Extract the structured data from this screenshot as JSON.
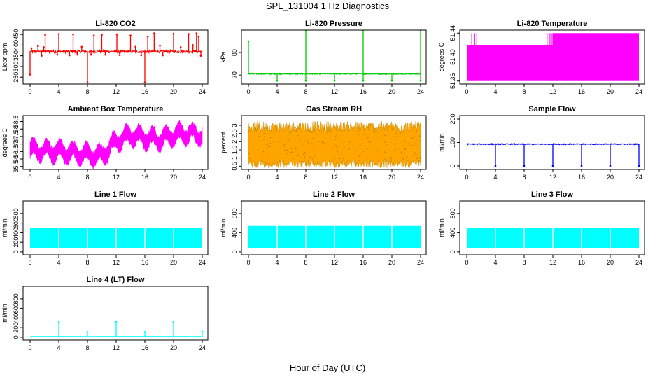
{
  "page": {
    "title": "SPL_131004  1 Hz Diagnostics",
    "xlabel": "Hour of Day (UTC)"
  },
  "chart_data": [
    {
      "type": "line",
      "title": "Li-820 CO2",
      "ylabel": "Licor ppm",
      "color": "#ff0000",
      "xlim": [
        0,
        24
      ],
      "xticks": [
        0,
        4,
        8,
        12,
        16,
        20,
        24
      ],
      "ylim": [
        218,
        470
      ],
      "yticks": [
        250,
        300,
        350,
        400,
        450
      ],
      "baseline": 370,
      "noise": 6,
      "spikes": [
        {
          "x": 0.0,
          "y": 262
        },
        {
          "x": 0.2,
          "y": 385
        },
        {
          "x": 1.1,
          "y": 395
        },
        {
          "x": 1.6,
          "y": 350
        },
        {
          "x": 1.9,
          "y": 390
        },
        {
          "x": 2.1,
          "y": 448
        },
        {
          "x": 3.8,
          "y": 355
        },
        {
          "x": 4.0,
          "y": 452
        },
        {
          "x": 5.5,
          "y": 352
        },
        {
          "x": 6.0,
          "y": 450
        },
        {
          "x": 6.6,
          "y": 355
        },
        {
          "x": 7.2,
          "y": 392
        },
        {
          "x": 8.0,
          "y": 225
        },
        {
          "x": 8.5,
          "y": 355
        },
        {
          "x": 8.9,
          "y": 445
        },
        {
          "x": 10.0,
          "y": 448
        },
        {
          "x": 10.5,
          "y": 355
        },
        {
          "x": 12.1,
          "y": 450
        },
        {
          "x": 12.5,
          "y": 353
        },
        {
          "x": 14.0,
          "y": 445
        },
        {
          "x": 14.7,
          "y": 392
        },
        {
          "x": 15.5,
          "y": 352
        },
        {
          "x": 16.0,
          "y": 225
        },
        {
          "x": 16.4,
          "y": 440
        },
        {
          "x": 17.3,
          "y": 455
        },
        {
          "x": 18.1,
          "y": 398
        },
        {
          "x": 18.5,
          "y": 352
        },
        {
          "x": 20.0,
          "y": 453
        },
        {
          "x": 21.0,
          "y": 390
        },
        {
          "x": 22.1,
          "y": 452
        },
        {
          "x": 22.7,
          "y": 400
        },
        {
          "x": 23.2,
          "y": 455
        },
        {
          "x": 23.5,
          "y": 440
        },
        {
          "x": 23.8,
          "y": 350
        }
      ]
    },
    {
      "type": "line",
      "title": "Li-820 Pressure",
      "ylabel": "kPa",
      "color": "#00cc00",
      "xlim": [
        0,
        24
      ],
      "xticks": [
        0,
        4,
        8,
        12,
        16,
        20,
        24
      ],
      "ylim": [
        66,
        90
      ],
      "yticks": [
        70,
        80
      ],
      "baseline": 70.5,
      "noise": 0.2,
      "spikes": [
        {
          "x": 0.0,
          "y": 85
        },
        {
          "x": 4.0,
          "y": 67.5
        },
        {
          "x": 8.0,
          "y": 90
        },
        {
          "x": 8.0,
          "y": 67.5
        },
        {
          "x": 12.0,
          "y": 67.5
        },
        {
          "x": 16.0,
          "y": 90
        },
        {
          "x": 16.0,
          "y": 67.5
        },
        {
          "x": 20.0,
          "y": 67.5
        },
        {
          "x": 24.0,
          "y": 90
        },
        {
          "x": 24.0,
          "y": 67.5
        }
      ]
    },
    {
      "type": "area",
      "title": "Li-820 Temperature",
      "ylabel": "degrees C",
      "color": "#ff00ff",
      "xlim": [
        0,
        24
      ],
      "xticks": [
        0,
        4,
        8,
        12,
        16,
        20,
        24
      ],
      "ylim": [
        51.355,
        51.445
      ],
      "yticks": [
        51.36,
        51.4,
        51.44
      ],
      "low": 51.36,
      "high_early": 51.42,
      "high_late": 51.44,
      "switch_hour": 12.0,
      "bursts": [
        {
          "x": 0.7,
          "y": 51.44
        },
        {
          "x": 1.1,
          "y": 51.44
        },
        {
          "x": 1.4,
          "y": 51.44
        },
        {
          "x": 11.2,
          "y": 51.44
        },
        {
          "x": 11.6,
          "y": 51.44
        },
        {
          "x": 11.9,
          "y": 51.44
        },
        {
          "x": 12.6,
          "y": 51.42
        },
        {
          "x": 14.0,
          "y": 51.42
        },
        {
          "x": 15.2,
          "y": 51.42
        },
        {
          "x": 17.0,
          "y": 51.42
        },
        {
          "x": 18.3,
          "y": 51.42
        },
        {
          "x": 19.5,
          "y": 51.42
        }
      ]
    },
    {
      "type": "area",
      "title": "Ambient Box Temperature",
      "ylabel": "degrees C",
      "color": "#ff00ff",
      "xlim": [
        0,
        24
      ],
      "xticks": [
        0,
        4,
        8,
        12,
        16,
        20,
        24
      ],
      "ylim": [
        35.3,
        38.9
      ],
      "yticks": [
        35.5,
        36.0,
        36.5,
        37.0,
        37.5,
        38.0,
        38.5
      ],
      "trend": [
        {
          "x": 0,
          "y": 36.6
        },
        {
          "x": 4,
          "y": 36.5
        },
        {
          "x": 8,
          "y": 36.3
        },
        {
          "x": 10,
          "y": 36.2
        },
        {
          "x": 12,
          "y": 37.2
        },
        {
          "x": 14,
          "y": 37.6
        },
        {
          "x": 16,
          "y": 37.4
        },
        {
          "x": 18,
          "y": 37.3
        },
        {
          "x": 20,
          "y": 37.6
        },
        {
          "x": 22,
          "y": 37.7
        },
        {
          "x": 24,
          "y": 37.6
        }
      ],
      "amplitude": 0.6
    },
    {
      "type": "area",
      "title": "Gas Stream RH",
      "ylabel": "percent",
      "color": "#ffa500",
      "xlim": [
        0,
        24
      ],
      "xticks": [
        0,
        4,
        8,
        12,
        16,
        20,
        24
      ],
      "ylim": [
        0.3,
        3.6
      ],
      "yticks": [
        0.5,
        1.0,
        1.5,
        2.0,
        2.5,
        3.0
      ],
      "low": 0.8,
      "high": 2.9
    },
    {
      "type": "line",
      "title": "Sample Flow",
      "ylabel": "ml/min",
      "color": "#0000ff",
      "xlim": [
        0,
        24
      ],
      "xticks": [
        0,
        4,
        8,
        12,
        16,
        20,
        24
      ],
      "ylim": [
        -15,
        215
      ],
      "yticks": [
        0,
        100,
        200
      ],
      "baseline": 93,
      "noise": 2,
      "spikes": [
        {
          "x": 4.0,
          "y": 0
        },
        {
          "x": 8.0,
          "y": 0
        },
        {
          "x": 12.0,
          "y": 0
        },
        {
          "x": 16.0,
          "y": 0
        },
        {
          "x": 20.0,
          "y": 0
        },
        {
          "x": 24.0,
          "y": 0
        }
      ]
    },
    {
      "type": "area",
      "title": "Line 1 Flow",
      "ylabel": "ml/min",
      "color": "#00ffff",
      "xlim": [
        0,
        24
      ],
      "xticks": [
        0,
        4,
        8,
        12,
        16,
        20,
        24
      ],
      "ylim": [
        -60,
        1060
      ],
      "yticks": [
        0,
        200,
        400,
        600,
        800
      ],
      "low": 80,
      "high": 500,
      "gaps": [
        4.0,
        8.0,
        12.0,
        16.0,
        20.0
      ]
    },
    {
      "type": "area",
      "title": "Line 2 Flow",
      "ylabel": "ml/min",
      "color": "#00ffff",
      "xlim": [
        0,
        24
      ],
      "xticks": [
        0,
        4,
        8,
        12,
        16,
        20,
        24
      ],
      "ylim": [
        -60,
        1060
      ],
      "yticks": [
        0,
        400,
        800
      ],
      "low": 80,
      "high": 540,
      "gaps": [
        4.0,
        8.0,
        12.0,
        16.0,
        20.0
      ]
    },
    {
      "type": "area",
      "title": "Line 3 Flow",
      "ylabel": "ml/min",
      "color": "#00ffff",
      "xlim": [
        0,
        24
      ],
      "xticks": [
        0,
        4,
        8,
        12,
        16,
        20,
        24
      ],
      "ylim": [
        -60,
        1060
      ],
      "yticks": [
        0,
        400,
        800
      ],
      "low": 80,
      "high": 500,
      "gaps": [
        4.0,
        8.0,
        12.0,
        16.0,
        20.0
      ]
    },
    {
      "type": "line",
      "title": "Line 4 (LT) Flow",
      "ylabel": "ml/min",
      "color": "#00ffff",
      "xlim": [
        0,
        24
      ],
      "xticks": [
        0,
        4,
        8,
        12,
        16,
        20,
        24
      ],
      "ylim": [
        -60,
        1060
      ],
      "yticks": [
        0,
        200,
        400,
        600,
        800
      ],
      "baseline": 15,
      "noise": 3,
      "spikes": [
        {
          "x": 4.0,
          "y": 320
        },
        {
          "x": 8.0,
          "y": 110
        },
        {
          "x": 12.0,
          "y": 320
        },
        {
          "x": 16.0,
          "y": 110
        },
        {
          "x": 20.0,
          "y": 320
        },
        {
          "x": 24.0,
          "y": 120
        }
      ]
    }
  ]
}
